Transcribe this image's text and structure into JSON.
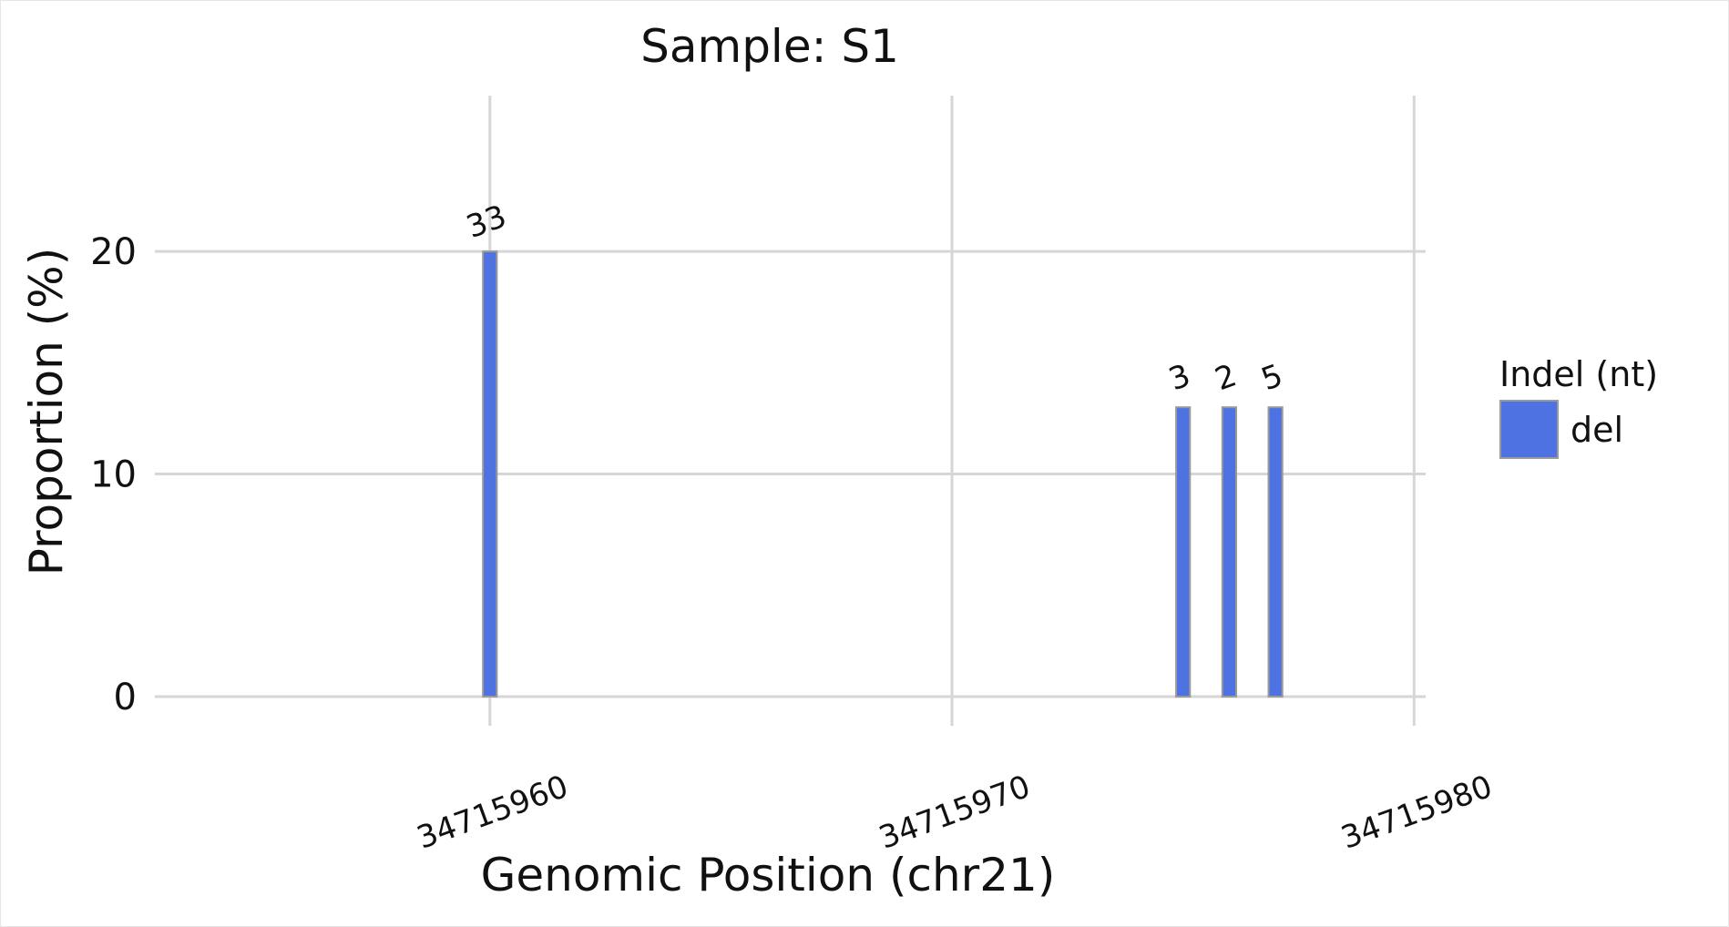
{
  "chart_data": {
    "type": "bar",
    "title": "Sample: S1",
    "xlabel": "Genomic Position (chr21)",
    "ylabel": "Proportion (%)",
    "xlim": [
      34715952.75,
      34715980.25
    ],
    "ylim": [
      0,
      27
    ],
    "xticks": [
      34715960,
      34715970,
      34715980
    ],
    "yticks": [
      0,
      10,
      20
    ],
    "grid": true,
    "legend": {
      "title": "Indel (nt)",
      "position": "right",
      "entries": [
        {
          "name": "del",
          "color": "#4f72e3"
        }
      ]
    },
    "series": [
      {
        "name": "del",
        "color": "#4f72e3",
        "bars": [
          {
            "x": 34715960,
            "value": 20,
            "label": "33"
          },
          {
            "x": 34715975,
            "value": 13,
            "label": "3"
          },
          {
            "x": 34715976,
            "value": 13,
            "label": "2"
          },
          {
            "x": 34715977,
            "value": 13,
            "label": "5"
          }
        ]
      }
    ]
  }
}
